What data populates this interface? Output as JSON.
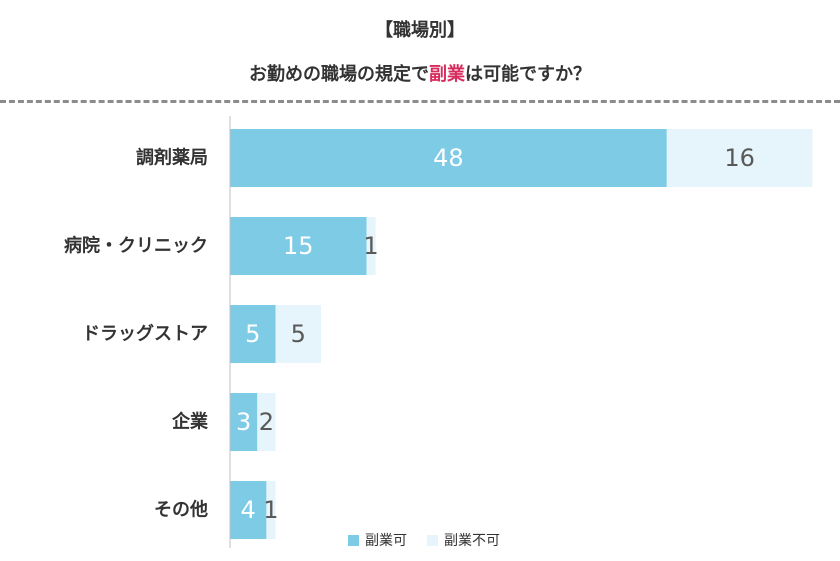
{
  "title": {
    "line1": "【職場別】",
    "line2_before": "お勤めの職場の規定で",
    "line2_accent": "副業",
    "line2_after": "は可能ですか？"
  },
  "colors": {
    "allowed": "#7ecbe6",
    "not_allowed": "#e6f4fb",
    "accent": "#d62d5e",
    "label_on_dark": "#ffffff",
    "label_on_light": "#595959"
  },
  "chart_data": {
    "type": "bar",
    "orientation": "horizontal",
    "stacked": true,
    "categories": [
      "調剤薬局",
      "病院・クリニック",
      "ドラッグストア",
      "企業",
      "その他"
    ],
    "series": [
      {
        "name": "副業可",
        "values": [
          48,
          15,
          5,
          3,
          4
        ]
      },
      {
        "name": "副業不可",
        "values": [
          16,
          1,
          5,
          2,
          1
        ]
      }
    ],
    "xlim": [
      0,
      64
    ],
    "grid": false,
    "legend": "bottom"
  }
}
